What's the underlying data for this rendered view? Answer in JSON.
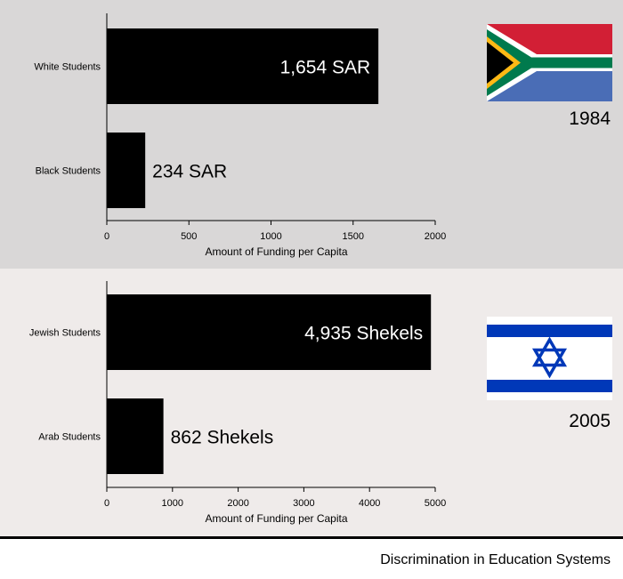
{
  "chart_data": [
    {
      "type": "bar",
      "orientation": "horizontal",
      "categories": [
        "White Students",
        "Black Students"
      ],
      "values": [
        1654,
        234
      ],
      "data_labels": [
        "1,654 SAR",
        "234 SAR"
      ],
      "xlabel": "Amount of Funding per Capita",
      "xlim": [
        0,
        2000
      ],
      "xticks": [
        0,
        500,
        1000,
        1500,
        2000
      ],
      "bar_color": "#000000",
      "grid": false,
      "year": "1984",
      "flag": "south-africa-flag"
    },
    {
      "type": "bar",
      "orientation": "horizontal",
      "categories": [
        "Jewish Students",
        "Arab Students"
      ],
      "values": [
        4935,
        862
      ],
      "data_labels": [
        "4,935 Shekels",
        "862 Shekels"
      ],
      "xlabel": "Amount of Funding per Capita",
      "xlim": [
        0,
        5000
      ],
      "xticks": [
        0,
        1000,
        2000,
        3000,
        4000,
        5000
      ],
      "bar_color": "#000000",
      "grid": false,
      "year": "2005",
      "flag": "israel-flag"
    }
  ],
  "footer": {
    "title": "Discrimination in Education Systems"
  },
  "colors": {
    "panel_top_bg": "#d9d7d7",
    "panel_bottom_bg": "#efebea",
    "bar": "#000000",
    "sa_red": "#d21f35",
    "sa_blue": "#4a6db6",
    "sa_green": "#007a4d",
    "sa_yellow": "#ffb915",
    "il_blue": "#0038b8"
  }
}
